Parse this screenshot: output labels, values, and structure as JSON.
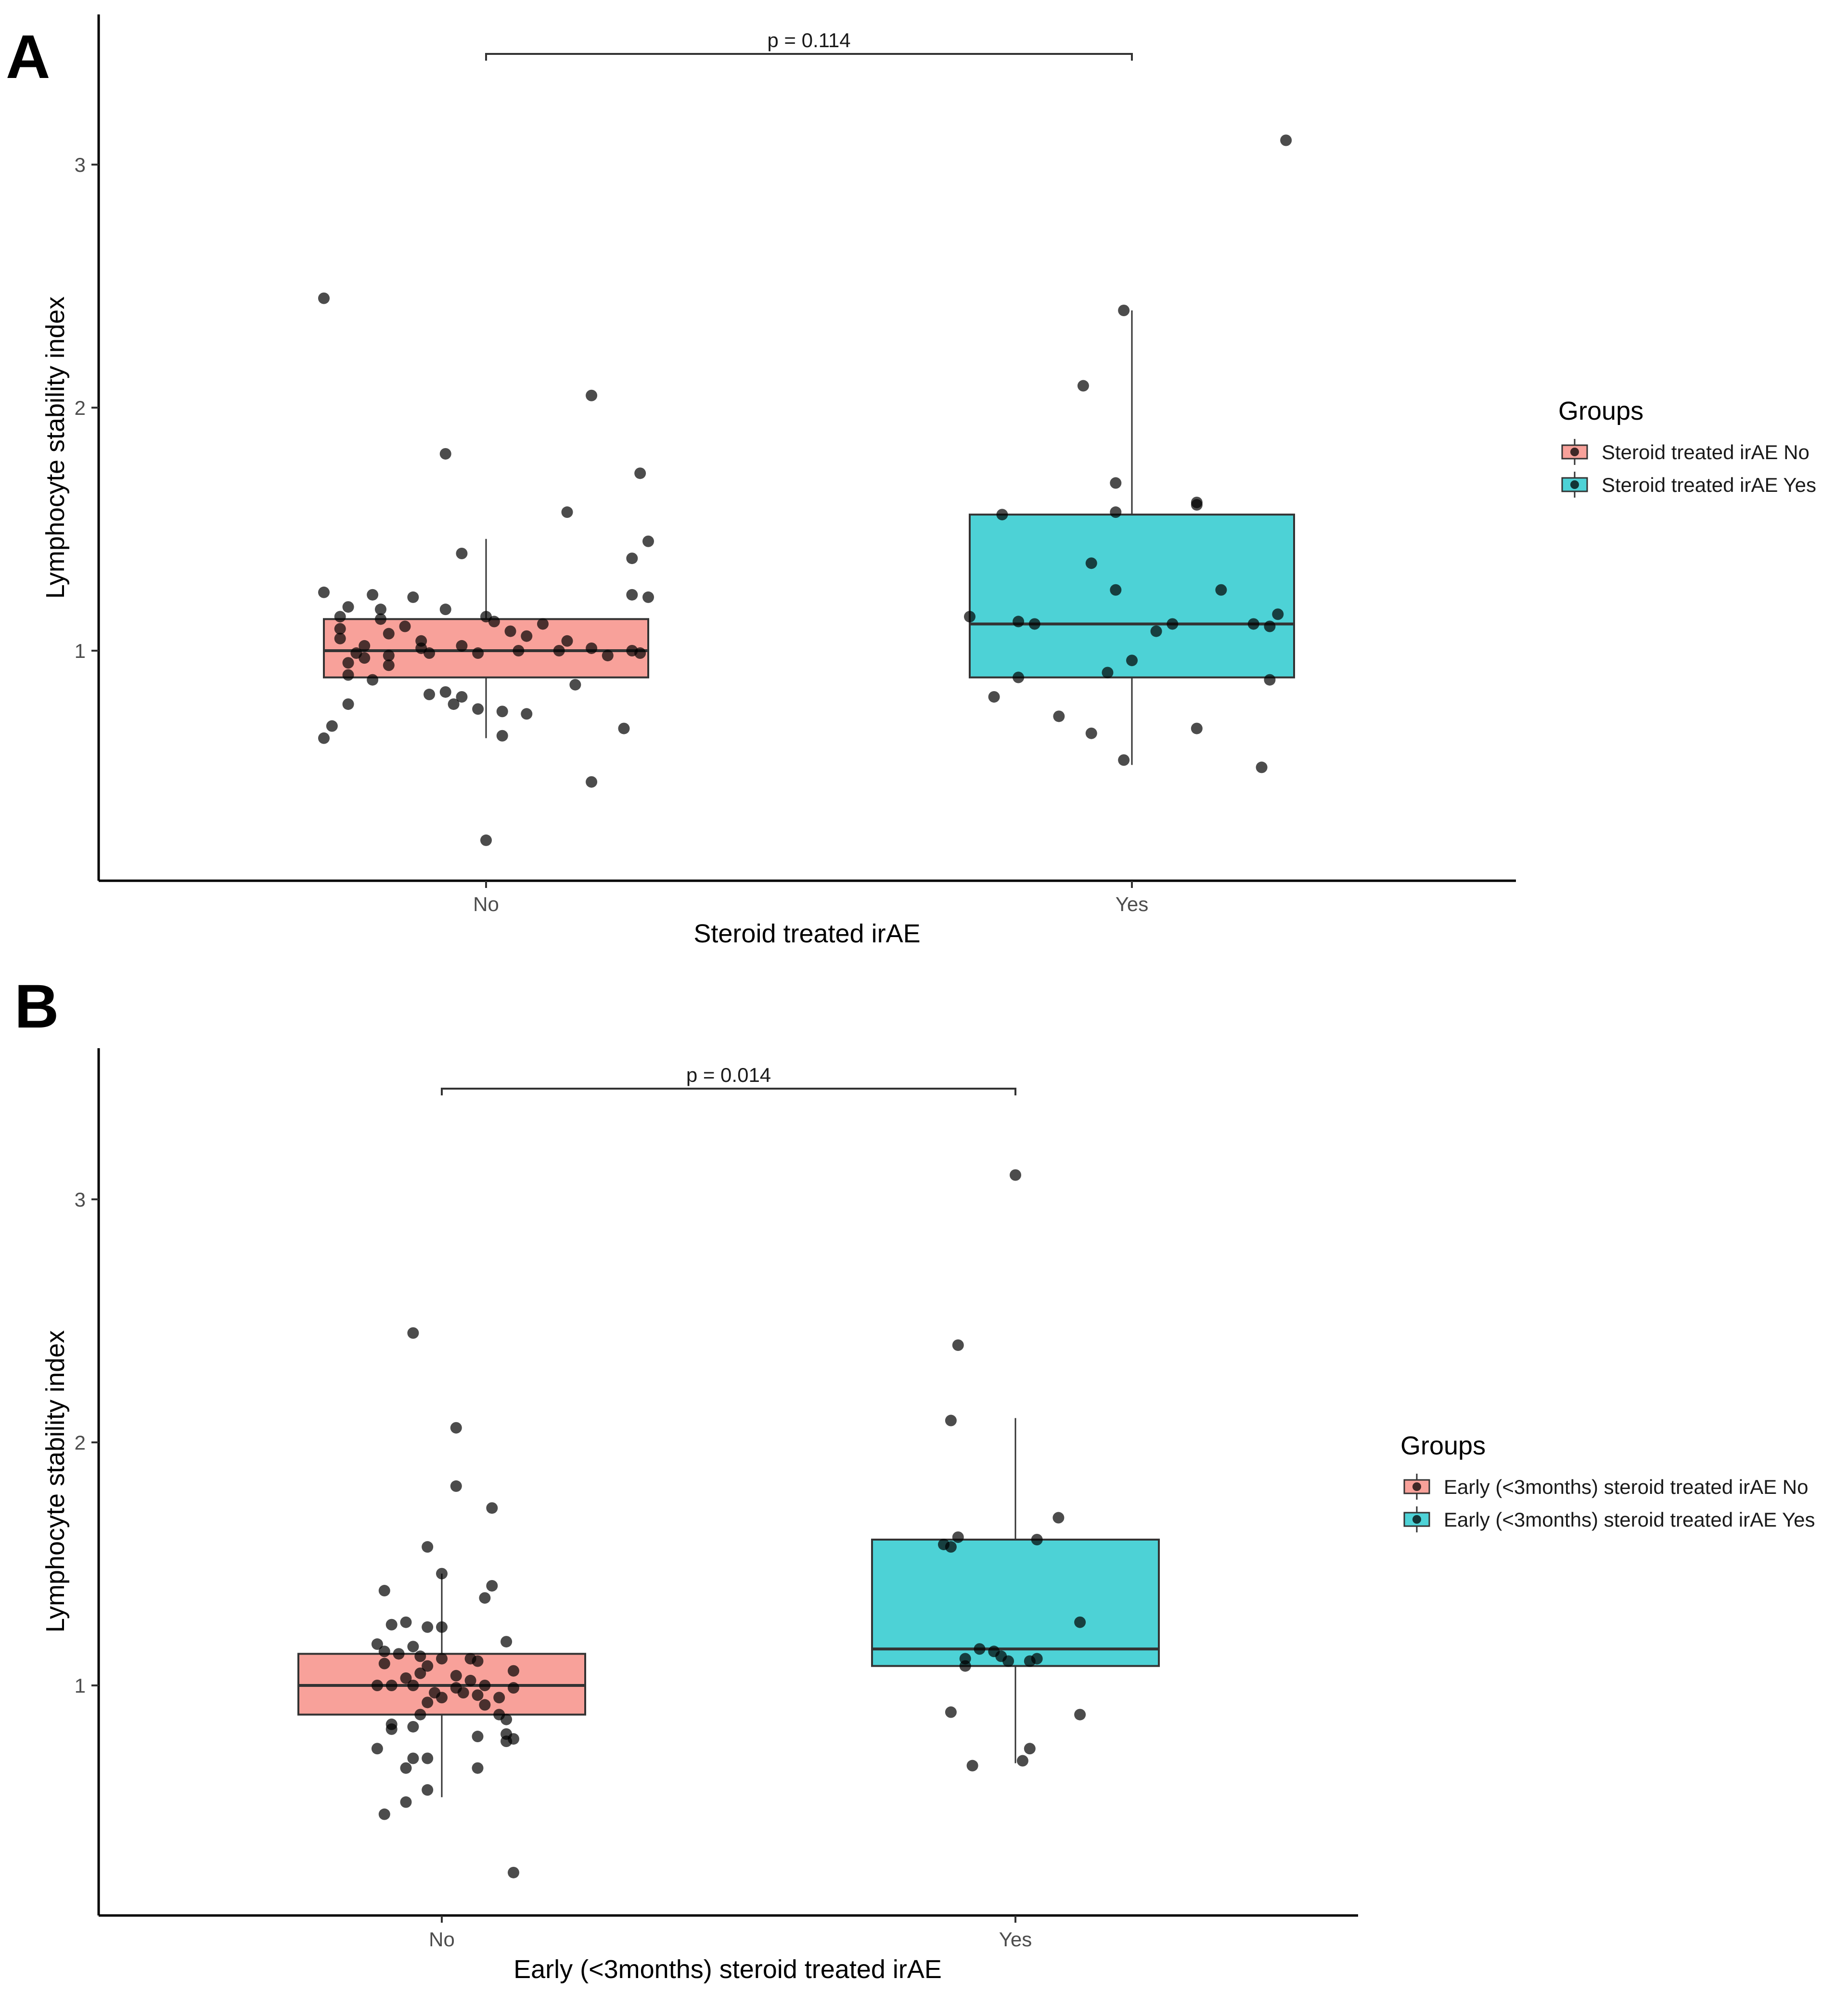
{
  "figure": {
    "panels": [
      "A",
      "B"
    ]
  },
  "colors": {
    "no_fill": "#F8A19A",
    "yes_fill": "#4DD2D6",
    "box_stroke": "#333333",
    "point": "#000000"
  },
  "chart_data": [
    {
      "type": "box",
      "panel": "A",
      "title": "",
      "xlabel": "Steroid treated irAE",
      "ylabel": "Lymphocyte stability index",
      "categories": [
        "No",
        "Yes"
      ],
      "yticks": [
        1,
        2,
        3
      ],
      "ylim": [
        0.05,
        3.6
      ],
      "grid": false,
      "p_value_label": "p = 0.114",
      "legend": {
        "title": "Groups",
        "position": "right",
        "entries": [
          "Steroid treated irAE No",
          "Steroid treated irAE Yes"
        ]
      },
      "series": [
        {
          "name": "Steroid treated irAE No",
          "category": "No",
          "box": {
            "min": 0.64,
            "q1": 0.89,
            "median": 1.0,
            "q3": 1.13,
            "max": 1.46
          },
          "points": [
            [
              -0.2,
              2.45
            ],
            [
              0.13,
              2.05
            ],
            [
              -0.05,
              1.81
            ],
            [
              0.19,
              1.73
            ],
            [
              0.1,
              1.57
            ],
            [
              0.2,
              1.45
            ],
            [
              -0.03,
              1.4
            ],
            [
              0.18,
              1.38
            ],
            [
              -0.2,
              1.24
            ],
            [
              0.18,
              1.23
            ],
            [
              0.2,
              1.22
            ],
            [
              -0.14,
              1.23
            ],
            [
              -0.09,
              1.22
            ],
            [
              -0.17,
              1.18
            ],
            [
              -0.13,
              1.17
            ],
            [
              -0.05,
              1.17
            ],
            [
              -0.18,
              1.14
            ],
            [
              -0.13,
              1.13
            ],
            [
              0.0,
              1.14
            ],
            [
              0.01,
              1.12
            ],
            [
              0.07,
              1.11
            ],
            [
              -0.1,
              1.1
            ],
            [
              -0.18,
              1.09
            ],
            [
              0.03,
              1.08
            ],
            [
              -0.12,
              1.07
            ],
            [
              0.05,
              1.06
            ],
            [
              -0.18,
              1.05
            ],
            [
              -0.08,
              1.04
            ],
            [
              0.1,
              1.04
            ],
            [
              -0.15,
              1.02
            ],
            [
              -0.08,
              1.01
            ],
            [
              -0.03,
              1.02
            ],
            [
              0.04,
              1.0
            ],
            [
              0.09,
              1.0
            ],
            [
              0.13,
              1.01
            ],
            [
              0.18,
              1.0
            ],
            [
              0.19,
              0.99
            ],
            [
              -0.16,
              0.99
            ],
            [
              -0.12,
              0.98
            ],
            [
              -0.07,
              0.99
            ],
            [
              -0.01,
              0.99
            ],
            [
              -0.15,
              0.97
            ],
            [
              -0.17,
              0.95
            ],
            [
              -0.12,
              0.94
            ],
            [
              0.15,
              0.98
            ],
            [
              -0.17,
              0.9
            ],
            [
              -0.14,
              0.88
            ],
            [
              0.11,
              0.86
            ],
            [
              -0.05,
              0.83
            ],
            [
              -0.03,
              0.81
            ],
            [
              -0.07,
              0.82
            ],
            [
              -0.04,
              0.78
            ],
            [
              -0.01,
              0.76
            ],
            [
              0.02,
              0.75
            ],
            [
              -0.17,
              0.78
            ],
            [
              0.05,
              0.74
            ],
            [
              -0.19,
              0.69
            ],
            [
              0.17,
              0.68
            ],
            [
              -0.2,
              0.64
            ],
            [
              0.02,
              0.65
            ],
            [
              0.13,
              0.46
            ],
            [
              0.0,
              0.22
            ]
          ]
        },
        {
          "name": "Steroid treated irAE Yes",
          "category": "Yes",
          "box": {
            "min": 0.53,
            "q1": 0.89,
            "median": 1.11,
            "q3": 1.56,
            "max": 2.4
          },
          "points": [
            [
              0.19,
              3.1
            ],
            [
              -0.01,
              2.4
            ],
            [
              -0.06,
              2.09
            ],
            [
              -0.02,
              1.69
            ],
            [
              0.08,
              1.61
            ],
            [
              0.08,
              1.6
            ],
            [
              -0.02,
              1.57
            ],
            [
              -0.16,
              1.56
            ],
            [
              -0.05,
              1.36
            ],
            [
              -0.02,
              1.25
            ],
            [
              0.11,
              1.25
            ],
            [
              -0.2,
              1.14
            ],
            [
              0.18,
              1.15
            ],
            [
              -0.14,
              1.12
            ],
            [
              -0.12,
              1.11
            ],
            [
              0.05,
              1.11
            ],
            [
              0.17,
              1.1
            ],
            [
              0.15,
              1.11
            ],
            [
              0.03,
              1.08
            ],
            [
              0.0,
              0.96
            ],
            [
              -0.03,
              0.91
            ],
            [
              -0.14,
              0.89
            ],
            [
              0.17,
              0.88
            ],
            [
              -0.17,
              0.81
            ],
            [
              -0.09,
              0.73
            ],
            [
              -0.05,
              0.66
            ],
            [
              0.08,
              0.68
            ],
            [
              -0.01,
              0.55
            ],
            [
              0.16,
              0.52
            ]
          ]
        }
      ]
    },
    {
      "type": "box",
      "panel": "B",
      "title": "",
      "xlabel": "Early (<3months) steroid treated irAE",
      "ylabel": "Lymphocyte stability index",
      "categories": [
        "No",
        "Yes"
      ],
      "yticks": [
        1,
        2,
        3
      ],
      "ylim": [
        0.05,
        3.6
      ],
      "grid": false,
      "p_value_label": "p = 0.014",
      "legend": {
        "title": "Groups",
        "position": "right",
        "entries": [
          "Early (<3months) steroid treated irAE No",
          "Early (<3months) steroid treated irAE Yes"
        ]
      },
      "series": [
        {
          "name": "Early (<3months) steroid treated irAE No",
          "category": "No",
          "box": {
            "min": 0.54,
            "q1": 0.88,
            "median": 1.0,
            "q3": 1.13,
            "max": 1.46
          },
          "points": [
            [
              -0.04,
              2.45
            ],
            [
              0.02,
              2.06
            ],
            [
              0.02,
              1.82
            ],
            [
              0.07,
              1.73
            ],
            [
              -0.02,
              1.57
            ],
            [
              0.0,
              1.46
            ],
            [
              0.07,
              1.41
            ],
            [
              -0.08,
              1.39
            ],
            [
              0.06,
              1.36
            ],
            [
              -0.05,
              1.26
            ],
            [
              -0.07,
              1.25
            ],
            [
              -0.02,
              1.24
            ],
            [
              0.0,
              1.24
            ],
            [
              0.09,
              1.18
            ],
            [
              -0.09,
              1.17
            ],
            [
              -0.04,
              1.16
            ],
            [
              -0.08,
              1.14
            ],
            [
              -0.06,
              1.13
            ],
            [
              -0.03,
              1.12
            ],
            [
              0.0,
              1.11
            ],
            [
              0.04,
              1.11
            ],
            [
              0.05,
              1.1
            ],
            [
              -0.08,
              1.09
            ],
            [
              -0.02,
              1.08
            ],
            [
              0.1,
              1.06
            ],
            [
              -0.03,
              1.05
            ],
            [
              0.02,
              1.04
            ],
            [
              -0.05,
              1.03
            ],
            [
              0.04,
              1.02
            ],
            [
              -0.09,
              1.0
            ],
            [
              -0.07,
              1.0
            ],
            [
              -0.04,
              1.0
            ],
            [
              0.06,
              1.0
            ],
            [
              0.1,
              0.99
            ],
            [
              0.02,
              0.99
            ],
            [
              -0.01,
              0.97
            ],
            [
              0.03,
              0.97
            ],
            [
              0.05,
              0.96
            ],
            [
              0.08,
              0.95
            ],
            [
              0.0,
              0.95
            ],
            [
              -0.02,
              0.93
            ],
            [
              0.06,
              0.92
            ],
            [
              0.08,
              0.88
            ],
            [
              0.09,
              0.86
            ],
            [
              -0.03,
              0.88
            ],
            [
              -0.07,
              0.84
            ],
            [
              -0.04,
              0.83
            ],
            [
              -0.07,
              0.82
            ],
            [
              0.05,
              0.79
            ],
            [
              0.09,
              0.8
            ],
            [
              0.1,
              0.78
            ],
            [
              0.09,
              0.77
            ],
            [
              -0.09,
              0.74
            ],
            [
              -0.04,
              0.7
            ],
            [
              -0.02,
              0.7
            ],
            [
              -0.05,
              0.66
            ],
            [
              0.05,
              0.66
            ],
            [
              -0.02,
              0.57
            ],
            [
              -0.05,
              0.52
            ],
            [
              -0.08,
              0.47
            ],
            [
              0.1,
              0.23
            ]
          ]
        },
        {
          "name": "Early (<3months) steroid treated irAE Yes",
          "category": "Yes",
          "box": {
            "min": 0.68,
            "q1": 1.08,
            "median": 1.15,
            "q3": 1.6,
            "max": 2.1
          },
          "points": [
            [
              0.0,
              3.1
            ],
            [
              -0.08,
              2.4
            ],
            [
              -0.09,
              2.09
            ],
            [
              0.06,
              1.69
            ],
            [
              -0.08,
              1.61
            ],
            [
              0.03,
              1.6
            ],
            [
              -0.1,
              1.58
            ],
            [
              -0.09,
              1.57
            ],
            [
              0.09,
              1.26
            ],
            [
              -0.05,
              1.15
            ],
            [
              -0.03,
              1.14
            ],
            [
              -0.02,
              1.12
            ],
            [
              -0.07,
              1.11
            ],
            [
              0.03,
              1.11
            ],
            [
              0.02,
              1.1
            ],
            [
              -0.01,
              1.1
            ],
            [
              -0.07,
              1.08
            ],
            [
              -0.09,
              0.89
            ],
            [
              0.09,
              0.88
            ],
            [
              0.02,
              0.74
            ],
            [
              0.01,
              0.69
            ],
            [
              -0.06,
              0.67
            ]
          ]
        }
      ]
    }
  ]
}
